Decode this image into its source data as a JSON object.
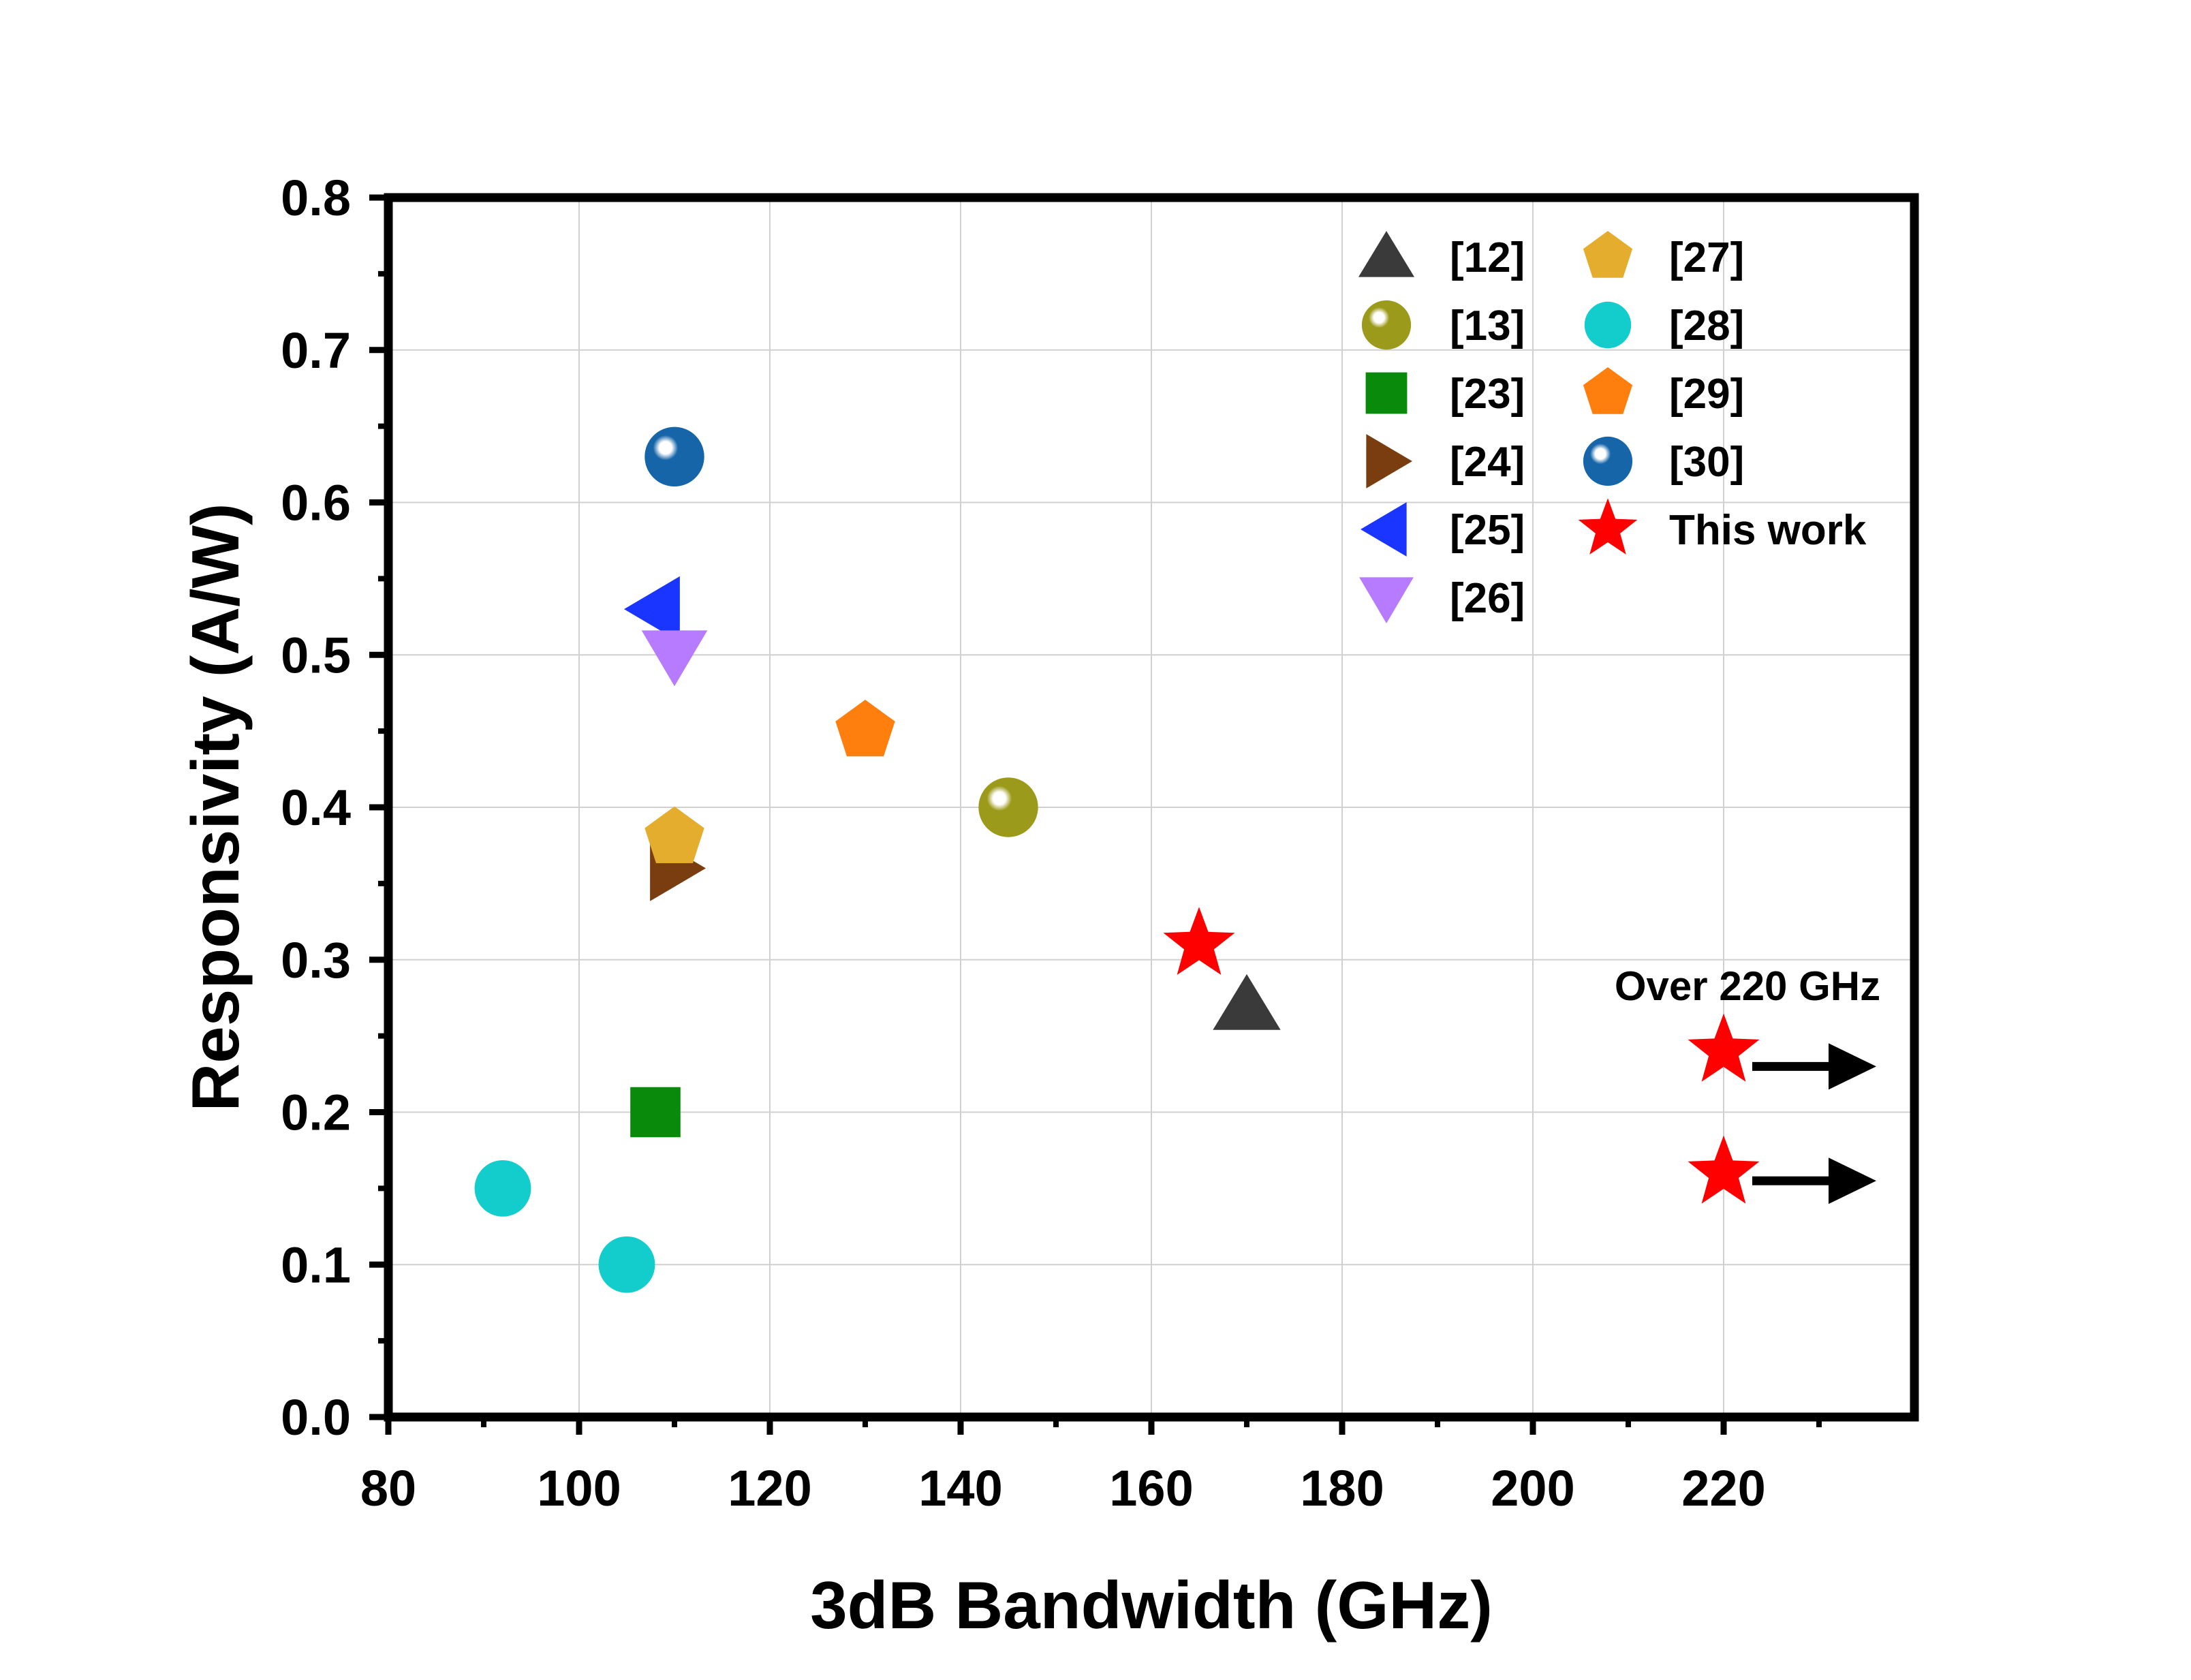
{
  "chart_data": {
    "type": "scatter",
    "xlabel": "3dB Bandwidth (GHz)",
    "ylabel": "Responsivity (A/W)",
    "xlim": [
      80,
      240
    ],
    "ylim": [
      0.0,
      0.8
    ],
    "xticks": [
      80,
      100,
      120,
      140,
      160,
      180,
      200,
      220
    ],
    "xtick_labels": [
      "80",
      "100",
      "120",
      "140",
      "160",
      "180",
      "200",
      "220"
    ],
    "yticks": [
      0.0,
      0.1,
      0.2,
      0.3,
      0.4,
      0.5,
      0.6,
      0.7,
      0.8
    ],
    "ytick_labels": [
      "0.0",
      "0.1",
      "0.2",
      "0.3",
      "0.4",
      "0.5",
      "0.6",
      "0.7",
      "0.8"
    ],
    "grid": true,
    "legend_position": "top-right",
    "series": [
      {
        "name": "[12]",
        "marker": "triangle-up",
        "color": "#3a3a3a",
        "points": [
          {
            "x": 170,
            "y": 0.27
          }
        ]
      },
      {
        "name": "[13]",
        "marker": "sphere",
        "color": "#9c9a1a",
        "points": [
          {
            "x": 145,
            "y": 0.4
          }
        ]
      },
      {
        "name": "[23]",
        "marker": "square",
        "color": "#0a8a0a",
        "points": [
          {
            "x": 108,
            "y": 0.2
          }
        ]
      },
      {
        "name": "[24]",
        "marker": "triangle-right",
        "color": "#7a3d10",
        "points": [
          {
            "x": 110,
            "y": 0.36
          }
        ]
      },
      {
        "name": "[25]",
        "marker": "triangle-left",
        "color": "#1a35ff",
        "points": [
          {
            "x": 108,
            "y": 0.53
          }
        ]
      },
      {
        "name": "[26]",
        "marker": "triangle-down",
        "color": "#b77bff",
        "points": [
          {
            "x": 110,
            "y": 0.5
          }
        ]
      },
      {
        "name": "[27]",
        "marker": "pentagon",
        "color": "#e5ad2e",
        "points": [
          {
            "x": 110,
            "y": 0.38
          }
        ]
      },
      {
        "name": "[28]",
        "marker": "circle",
        "color": "#13cccc",
        "points": [
          {
            "x": 92,
            "y": 0.15
          },
          {
            "x": 105,
            "y": 0.1
          }
        ]
      },
      {
        "name": "[29]",
        "marker": "pentagon",
        "color": "#ff7f0e",
        "points": [
          {
            "x": 130,
            "y": 0.45
          }
        ]
      },
      {
        "name": "[30]",
        "marker": "sphere",
        "color": "#1565a8",
        "points": [
          {
            "x": 110,
            "y": 0.63
          }
        ]
      },
      {
        "name": "This work",
        "marker": "star",
        "color": "#ff0000",
        "points": [
          {
            "x": 165,
            "y": 0.31
          },
          {
            "x": 220,
            "y": 0.24
          },
          {
            "x": 220,
            "y": 0.16
          }
        ]
      }
    ],
    "annotations": {
      "over_text": "Over 220 GHz",
      "arrows": [
        {
          "x_from": 223,
          "x_to": 236,
          "y": 0.23
        },
        {
          "x_from": 223,
          "x_to": 236,
          "y": 0.155
        }
      ]
    }
  }
}
